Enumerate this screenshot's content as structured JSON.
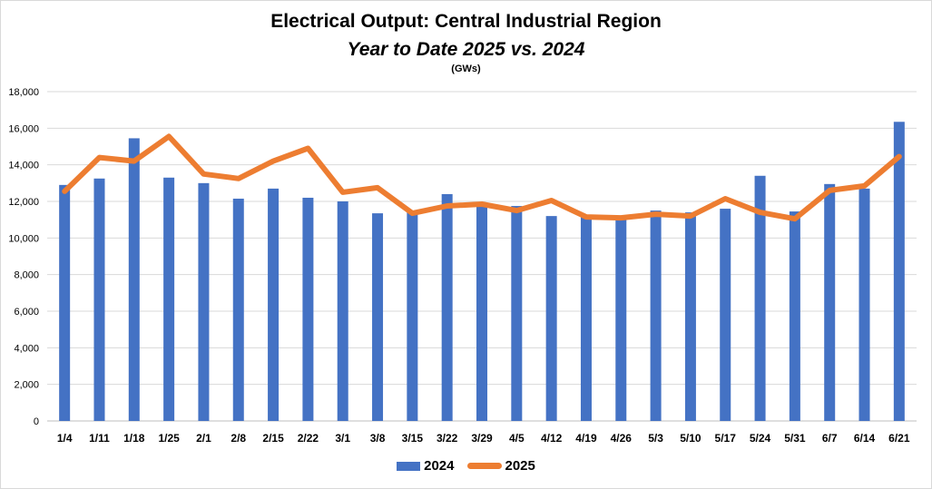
{
  "chart_data": {
    "type": "bar+line",
    "title": "Electrical Output:  Central Industrial Region",
    "subtitle": "Year to Date 2025 vs. 2024",
    "unit_note": "(GWs)",
    "categories": [
      "1/4",
      "1/11",
      "1/18",
      "1/25",
      "2/1",
      "2/8",
      "2/15",
      "2/22",
      "3/1",
      "3/8",
      "3/15",
      "3/22",
      "3/29",
      "4/5",
      "4/12",
      "4/19",
      "4/26",
      "5/3",
      "5/10",
      "5/17",
      "5/24",
      "5/31",
      "6/7",
      "6/14",
      "6/21"
    ],
    "ylim": [
      0,
      18000
    ],
    "yticks": [
      0,
      2000,
      4000,
      6000,
      8000,
      10000,
      12000,
      14000,
      16000,
      18000
    ],
    "ytick_labels": [
      "0",
      "2,000",
      "4,000",
      "6,000",
      "8,000",
      "10,000",
      "12,000",
      "14,000",
      "16,000",
      "18,000"
    ],
    "grid": true,
    "legend_position": "bottom",
    "series": [
      {
        "name": "2024",
        "type": "bar",
        "color": "#4472c4",
        "values": [
          12900,
          13250,
          15450,
          13300,
          13000,
          12150,
          12700,
          12200,
          12000,
          11350,
          11450,
          12400,
          11850,
          11750,
          11200,
          11200,
          11100,
          11500,
          11400,
          11600,
          13400,
          11450,
          12950,
          12700,
          16350
        ]
      },
      {
        "name": "2025",
        "type": "line",
        "color": "#ed7d31",
        "values": [
          12550,
          14400,
          14200,
          15550,
          13500,
          13250,
          14200,
          14900,
          12500,
          12750,
          11350,
          11750,
          11850,
          11500,
          12050,
          11150,
          11100,
          11300,
          11200,
          12150,
          11400,
          11050,
          12600,
          12850,
          14450
        ]
      }
    ]
  }
}
